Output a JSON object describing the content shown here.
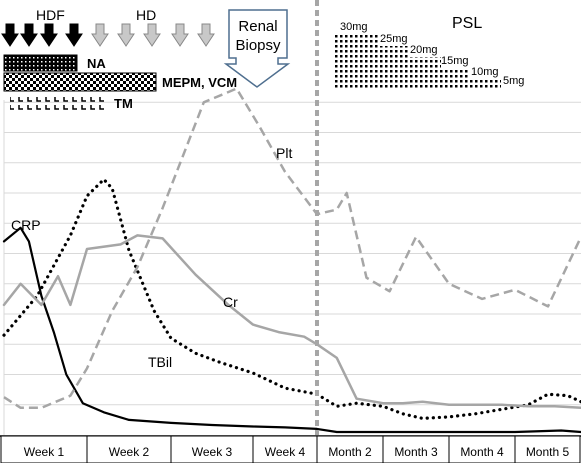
{
  "chart_data": {
    "type": "line",
    "title": "",
    "xlabel": "",
    "ylabel": "",
    "grid": true,
    "legend": "none (series labelled inline)",
    "colors": {
      "crp": "#000000",
      "tbil": "#000000",
      "cr": "#a6a6a6",
      "plt": "#a6a6a6",
      "divider": "#a6a6a6",
      "grid": "#d9d9d9",
      "arrow_hdf": "#000000",
      "arrow_hd": "#c8c8c8"
    },
    "x_periods": [
      {
        "label": "Week 1"
      },
      {
        "label": "Week 2"
      },
      {
        "label": "Week 3"
      },
      {
        "label": "Week 4"
      },
      {
        "label": "Month 2"
      },
      {
        "label": "Month 3"
      },
      {
        "label": "Month 4"
      },
      {
        "label": "Month 5"
      }
    ],
    "series": [
      {
        "name": "CRP",
        "style": "solid-black",
        "points": [
          [
            0,
            6.4
          ],
          [
            0.2,
            6.85
          ],
          [
            0.3,
            6.4
          ],
          [
            0.45,
            4.6
          ],
          [
            0.6,
            3.4
          ],
          [
            0.75,
            2.0
          ],
          [
            0.95,
            1.05
          ],
          [
            1.2,
            0.75
          ],
          [
            1.5,
            0.5
          ],
          [
            2.0,
            0.4
          ],
          [
            2.5,
            0.33
          ],
          [
            3.0,
            0.28
          ],
          [
            3.5,
            0.25
          ],
          [
            4.0,
            0.2
          ],
          [
            4.3,
            0.1
          ],
          [
            4.6,
            0.1
          ],
          [
            5.0,
            0.1
          ],
          [
            6.0,
            0.1
          ],
          [
            7.0,
            0.1
          ],
          [
            7.7,
            0.15
          ],
          [
            8.0,
            0.1
          ]
        ]
      },
      {
        "name": "TBil",
        "style": "dotted-black",
        "points": [
          [
            0,
            3.3
          ],
          [
            0.4,
            4.6
          ],
          [
            0.8,
            6.6
          ],
          [
            1.0,
            7.9
          ],
          [
            1.2,
            8.45
          ],
          [
            1.3,
            8.15
          ],
          [
            1.5,
            6.1
          ],
          [
            1.8,
            4.1
          ],
          [
            2.0,
            3.2
          ],
          [
            2.3,
            2.7
          ],
          [
            2.6,
            2.4
          ],
          [
            3.0,
            2.05
          ],
          [
            3.5,
            1.55
          ],
          [
            4.0,
            1.35
          ],
          [
            4.3,
            0.95
          ],
          [
            4.6,
            1.05
          ],
          [
            5.0,
            0.95
          ],
          [
            5.3,
            0.7
          ],
          [
            5.6,
            0.55
          ],
          [
            6.0,
            0.6
          ],
          [
            6.4,
            0.7
          ],
          [
            6.8,
            0.85
          ],
          [
            7.2,
            1.0
          ],
          [
            7.5,
            1.35
          ],
          [
            7.8,
            1.3
          ],
          [
            8.0,
            1.1
          ]
        ]
      },
      {
        "name": "Cr",
        "style": "solid-gray",
        "points": [
          [
            0,
            4.3
          ],
          [
            0.2,
            5.0
          ],
          [
            0.45,
            4.3
          ],
          [
            0.65,
            5.25
          ],
          [
            0.8,
            4.3
          ],
          [
            1.0,
            6.15
          ],
          [
            1.4,
            6.3
          ],
          [
            1.6,
            6.6
          ],
          [
            1.9,
            6.5
          ],
          [
            2.3,
            5.3
          ],
          [
            2.7,
            4.3
          ],
          [
            3.0,
            3.65
          ],
          [
            3.4,
            3.4
          ],
          [
            3.8,
            3.25
          ],
          [
            4.0,
            3.0
          ],
          [
            4.3,
            2.55
          ],
          [
            4.6,
            1.2
          ],
          [
            5.0,
            1.05
          ],
          [
            5.3,
            1.05
          ],
          [
            5.6,
            1.1
          ],
          [
            6.0,
            1.0
          ],
          [
            6.4,
            1.0
          ],
          [
            6.8,
            1.0
          ],
          [
            7.2,
            0.95
          ],
          [
            7.6,
            0.95
          ],
          [
            8.0,
            0.9
          ]
        ]
      },
      {
        "name": "Plt",
        "style": "dashed-gray",
        "points": [
          [
            0,
            1.25
          ],
          [
            0.2,
            0.9
          ],
          [
            0.45,
            0.9
          ],
          [
            0.8,
            1.3
          ],
          [
            1.0,
            2.2
          ],
          [
            1.3,
            4.1
          ],
          [
            1.6,
            5.55
          ],
          [
            1.9,
            7.5
          ],
          [
            2.4,
            11.0
          ],
          [
            2.8,
            11.45
          ],
          [
            3.1,
            10.2
          ],
          [
            3.5,
            8.7
          ],
          [
            4.0,
            7.3
          ],
          [
            4.3,
            7.45
          ],
          [
            4.45,
            8.0
          ],
          [
            4.75,
            5.2
          ],
          [
            5.1,
            4.75
          ],
          [
            5.5,
            6.55
          ],
          [
            6.0,
            5.0
          ],
          [
            6.5,
            4.5
          ],
          [
            7.0,
            4.8
          ],
          [
            7.5,
            4.25
          ],
          [
            8.0,
            6.55
          ]
        ]
      }
    ],
    "therapy": {
      "hdf_label": "HDF",
      "hd_label": "HD",
      "biopsy_label_line1": "Renal",
      "biopsy_label_line2": "Biopsy",
      "na_label": "NA",
      "mepm_label": "MEPM, VCM",
      "tm_label": "TM",
      "psl_label": "PSL",
      "psl_doses": [
        "30mg",
        "25mg",
        "20mg",
        "15mg",
        "10mg",
        "5mg"
      ]
    },
    "inline_labels": {
      "crp": "CRP",
      "tbil": "TBil",
      "cr": "Cr",
      "plt": "Plt"
    }
  }
}
